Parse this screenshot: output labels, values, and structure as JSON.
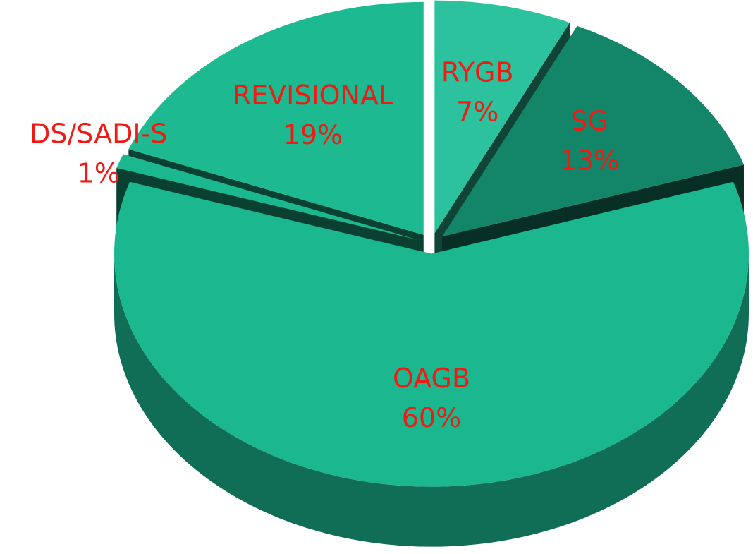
{
  "chart_data": {
    "type": "pie3d",
    "categories": [
      "RYGB",
      "SG",
      "OAGB",
      "DS/SADI-S",
      "REVISIONAL"
    ],
    "values": [
      7,
      13,
      60,
      1,
      19
    ],
    "value_labels": [
      "7%",
      "13%",
      "60%",
      "1%",
      "19%"
    ],
    "colors": [
      "#2cc29e",
      "#13866a",
      "#1bb88f",
      "#1bb88f",
      "#1db991"
    ]
  }
}
